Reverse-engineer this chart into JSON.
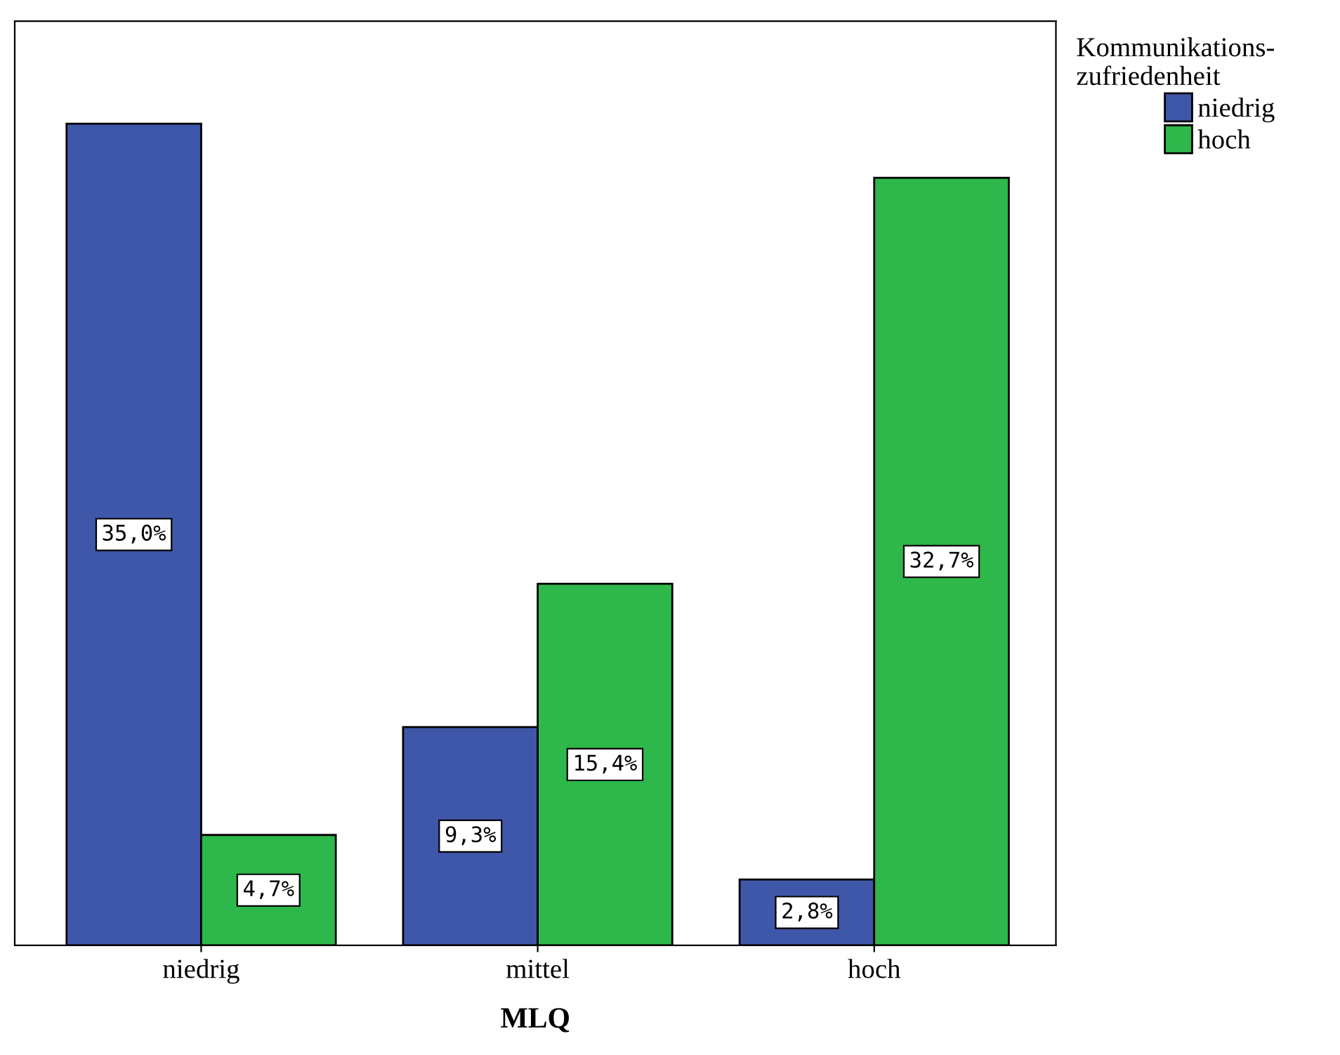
{
  "chart_data": {
    "type": "bar",
    "xlabel": "MLQ",
    "legend_title": "Kommunikations-\nzufriedenheit",
    "legend": "top right",
    "tick_labels": "x",
    "grid": false,
    "categories": [
      "niedrig",
      "mittel",
      "hoch"
    ],
    "series": [
      {
        "name": "niedrig",
        "color": "#3f57a9",
        "values": [
          35.0,
          9.3,
          2.8
        ],
        "value_labels": [
          "35,0%",
          "9,3%",
          "2,8%"
        ]
      },
      {
        "name": "hoch",
        "color": "#2eb84b",
        "values": [
          4.7,
          15.4,
          32.7
        ],
        "value_labels": [
          "4,7%",
          "15,4%",
          "32,7%"
        ]
      }
    ]
  }
}
